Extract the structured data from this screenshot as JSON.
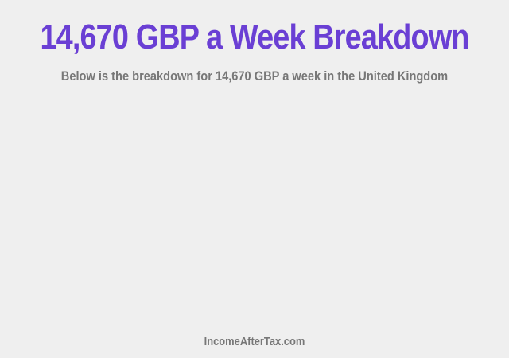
{
  "header": {
    "title": "14,670 GBP a Week Breakdown",
    "subtitle": "Below is the breakdown for 14,670 GBP a week in the United Kingdom"
  },
  "footer": {
    "site": "IncomeAfterTax.com"
  },
  "colors": {
    "title": "#6a3fd4",
    "text": "#777777",
    "background": "#efefef"
  }
}
